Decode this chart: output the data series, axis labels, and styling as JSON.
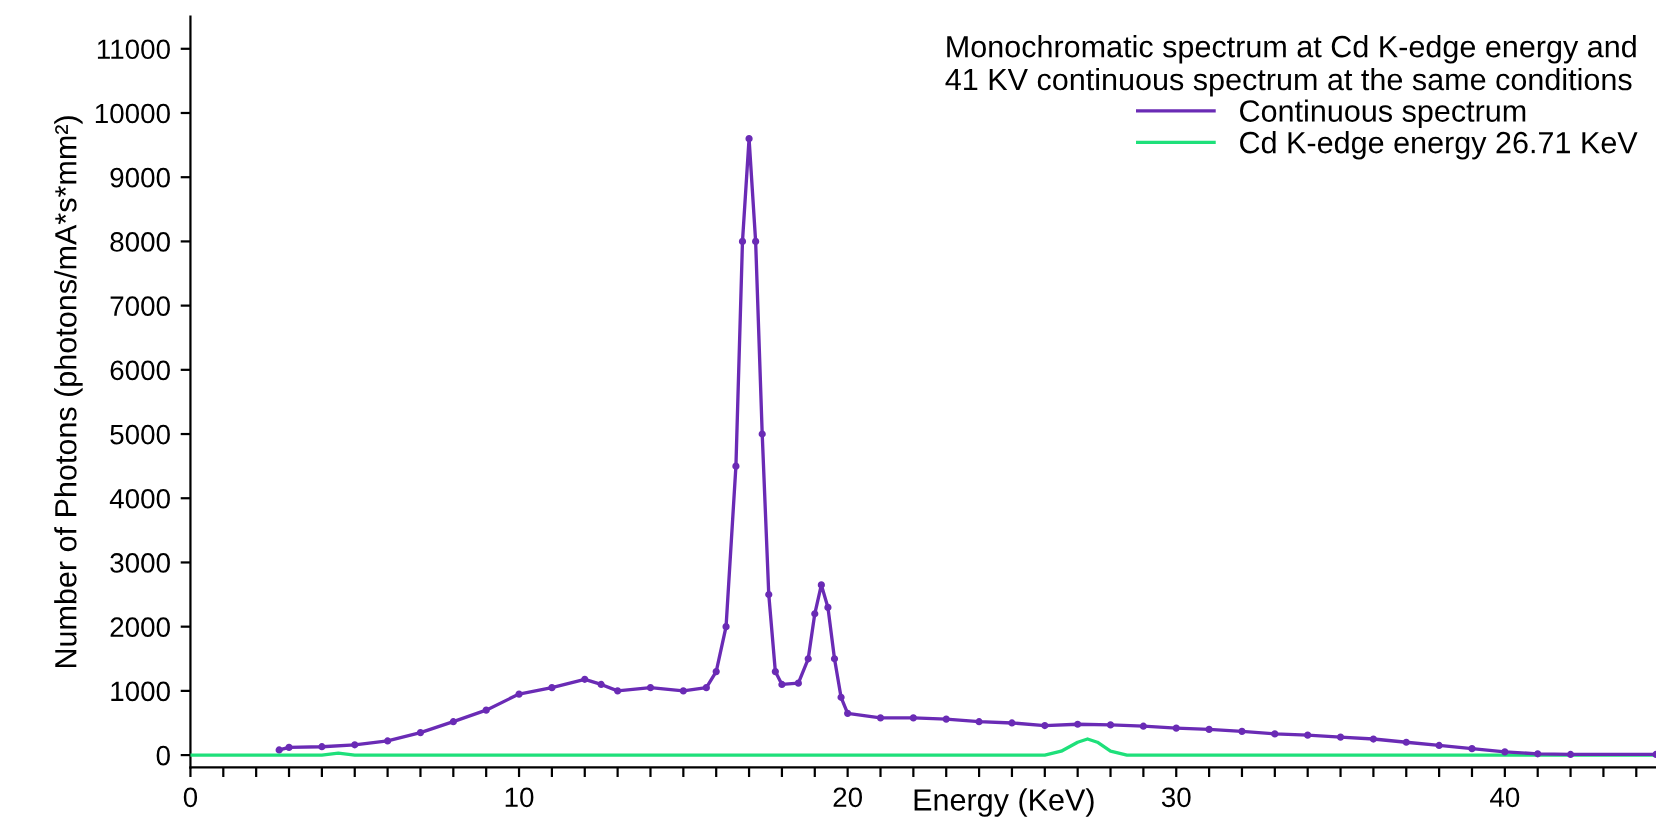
{
  "chart_data": {
    "type": "line",
    "xlabel": "Energy (KeV)",
    "ylabel": "Number of Photons (photons/mA*s*mm²)",
    "legend_title": "Monochromatic spectrum at Cd K-edge energy and\n41 KV continuous spectrum at the same conditions",
    "legend": "top right",
    "grid": false,
    "marker": "circle",
    "line_style": "solid",
    "xlim": [
      0,
      44.6
    ],
    "ylim": [
      -190,
      11500
    ],
    "xticks": [
      0,
      {
        "value": 1,
        "label": null
      },
      {
        "value": 2,
        "label": null
      },
      {
        "value": 3,
        "label": null
      },
      {
        "value": 4,
        "label": null
      },
      {
        "value": 5,
        "label": null
      },
      {
        "value": 6,
        "label": null
      },
      {
        "value": 7,
        "label": null
      },
      {
        "value": 8,
        "label": null
      },
      {
        "value": 9,
        "label": null
      },
      10,
      {
        "value": 11,
        "label": null
      },
      {
        "value": 12,
        "label": null
      },
      {
        "value": 13,
        "label": null
      },
      {
        "value": 14,
        "label": null
      },
      {
        "value": 15,
        "label": null
      },
      {
        "value": 16,
        "label": null
      },
      {
        "value": 17,
        "label": null
      },
      {
        "value": 18,
        "label": null
      },
      {
        "value": 19,
        "label": null
      },
      20,
      {
        "value": 21,
        "label": null
      },
      {
        "value": 22,
        "label": null
      },
      {
        "value": 23,
        "label": null
      },
      {
        "value": 24,
        "label": null
      },
      {
        "value": 25,
        "label": null
      },
      {
        "value": 26,
        "label": null
      },
      {
        "value": 27,
        "label": null
      },
      {
        "value": 28,
        "label": null
      },
      {
        "value": 29,
        "label": null
      },
      30,
      {
        "value": 31,
        "label": null
      },
      {
        "value": 32,
        "label": null
      },
      {
        "value": 33,
        "label": null
      },
      {
        "value": 34,
        "label": null
      },
      {
        "value": 35,
        "label": null
      },
      {
        "value": 36,
        "label": null
      },
      {
        "value": 37,
        "label": null
      },
      {
        "value": 38,
        "label": null
      },
      {
        "value": 39,
        "label": null
      },
      40,
      {
        "value": 41,
        "label": null
      },
      {
        "value": 42,
        "label": null
      },
      {
        "value": 43,
        "label": null
      },
      {
        "value": 44,
        "label": null
      }
    ],
    "yticks": [
      0,
      1000,
      2000,
      3000,
      4000,
      5000,
      6000,
      7000,
      8000,
      9000,
      10000,
      11000
    ],
    "series": [
      {
        "name": "Continuous spectrum",
        "color": "#6a2bb5",
        "x": [
          2.7,
          3,
          4,
          5,
          6,
          7,
          8,
          9,
          10,
          11,
          12,
          12.5,
          13,
          14,
          15,
          15.7,
          16,
          16.3,
          16.6,
          16.8,
          17,
          17.2,
          17.4,
          17.6,
          17.8,
          18,
          18.5,
          18.8,
          19,
          19.2,
          19.4,
          19.6,
          19.8,
          20,
          21,
          22,
          23,
          24,
          25,
          26,
          27,
          28,
          29,
          30,
          31,
          32,
          33,
          34,
          35,
          36,
          37,
          38,
          39,
          40,
          41,
          42,
          44.6
        ],
        "values": [
          80,
          120,
          130,
          160,
          220,
          350,
          520,
          700,
          950,
          1050,
          1180,
          1100,
          1000,
          1050,
          1000,
          1050,
          1300,
          2000,
          4500,
          8000,
          9600,
          8000,
          5000,
          2500,
          1300,
          1100,
          1120,
          1500,
          2200,
          2650,
          2300,
          1500,
          900,
          650,
          580,
          580,
          560,
          520,
          500,
          460,
          480,
          470,
          450,
          420,
          400,
          370,
          330,
          310,
          280,
          250,
          200,
          150,
          100,
          50,
          20,
          10,
          10
        ]
      },
      {
        "name": "Cd K-edge energy 26.71 KeV",
        "color": "#1ee07a",
        "marker": "none",
        "x": [
          0,
          4,
          4.5,
          5,
          26,
          26.5,
          27,
          27.3,
          27.6,
          28,
          28.5,
          44.6
        ],
        "values": [
          0,
          0,
          30,
          0,
          0,
          60,
          200,
          250,
          200,
          60,
          0,
          0
        ]
      }
    ]
  }
}
